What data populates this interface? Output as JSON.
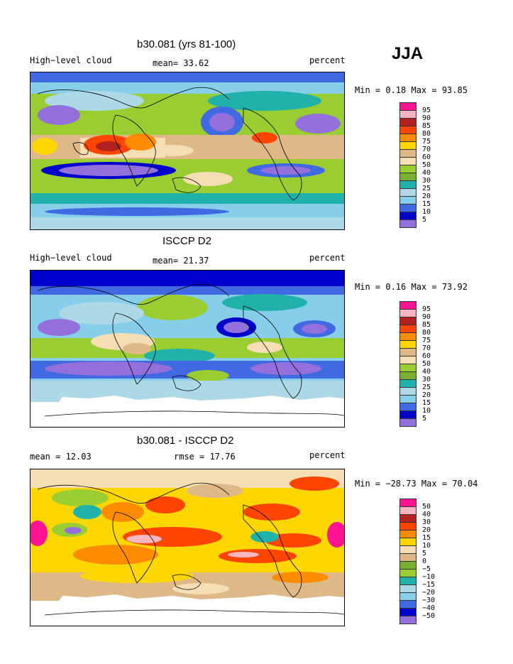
{
  "season": "JJA",
  "panels": [
    {
      "title": "b30.081 (yrs 81-100)",
      "left_label": "High−level cloud",
      "center_label": "mean=  33.62",
      "right_label": "percent",
      "minmax": "Min =   0.18 Max =  93.85",
      "colorbar": {
        "labels": [
          "95",
          "90",
          "85",
          "80",
          "75",
          "70",
          "60",
          "50",
          "40",
          "30",
          "25",
          "20",
          "15",
          "10",
          "5"
        ],
        "colors": [
          "#ff1493",
          "#ffb6c1",
          "#b22222",
          "#ff4500",
          "#ff8c00",
          "#ffd700",
          "#deb887",
          "#f5deb3",
          "#9acd32",
          "#7ab030",
          "#20b2aa",
          "#add8e6",
          "#87ceeb",
          "#4169e1",
          "#0000cd",
          "#9370db"
        ]
      }
    },
    {
      "title": "ISCCP D2",
      "left_label": "High−level cloud",
      "center_label": "mean=  21.37",
      "right_label": "percent",
      "minmax": "Min =   0.16 Max =  73.92",
      "colorbar": {
        "labels": [
          "95",
          "90",
          "85",
          "80",
          "75",
          "70",
          "60",
          "50",
          "40",
          "30",
          "25",
          "20",
          "15",
          "10",
          "5"
        ],
        "colors": [
          "#ff1493",
          "#ffb6c1",
          "#b22222",
          "#ff4500",
          "#ff8c00",
          "#ffd700",
          "#deb887",
          "#f5deb3",
          "#9acd32",
          "#7ab030",
          "#20b2aa",
          "#add8e6",
          "#87ceeb",
          "#4169e1",
          "#0000cd",
          "#9370db"
        ]
      }
    },
    {
      "title": "b30.081 - ISCCP D2",
      "left_label": "mean =  12.03",
      "center_label": "rmse =  17.76",
      "right_label": "percent",
      "minmax": "Min = −28.73 Max =  70.04",
      "colorbar": {
        "labels": [
          "50",
          "40",
          "30",
          "20",
          "15",
          "10",
          "5",
          "0",
          "−5",
          "−10",
          "−15",
          "−20",
          "−30",
          "−40",
          "−50"
        ],
        "colors": [
          "#ff1493",
          "#ffb6c1",
          "#b22222",
          "#ff4500",
          "#ff8c00",
          "#ffd700",
          "#f5deb3",
          "#deb887",
          "#7ab030",
          "#9acd32",
          "#20b2aa",
          "#add8e6",
          "#87ceeb",
          "#4169e1",
          "#0000cd",
          "#9370db"
        ]
      }
    }
  ]
}
